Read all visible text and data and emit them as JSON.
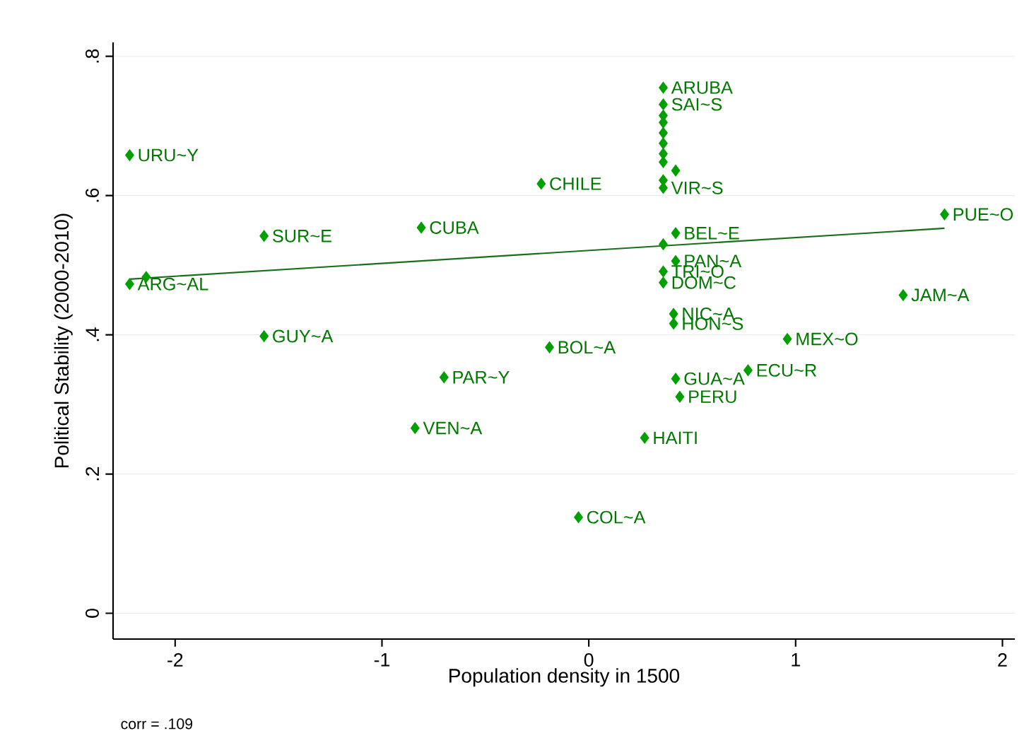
{
  "chart_data": {
    "type": "scatter",
    "xlabel": "Population density in 1500",
    "ylabel": "Political Stability (2000-2010)",
    "annotations": [
      "corr = .109"
    ],
    "xlim": [
      -2.3,
      2.06
    ],
    "ylim": [
      -0.037,
      0.82
    ],
    "xticks": [
      -2,
      -1,
      0,
      1,
      2
    ],
    "yticks": [
      {
        "value": 0,
        "label": "0"
      },
      {
        "value": 0.2,
        "label": ".2"
      },
      {
        "value": 0.4,
        "label": ".4"
      },
      {
        "value": 0.6,
        "label": ".6"
      },
      {
        "value": 0.8,
        "label": ".8"
      }
    ],
    "grid": "y",
    "marker": "diamond",
    "series": [
      {
        "color": "#00a000",
        "x": [
          -2.22,
          -2.22,
          -2.14,
          -1.57,
          -1.57,
          -0.81,
          -0.23,
          -0.7,
          -0.19,
          -0.84,
          -0.05,
          0.27,
          0.42,
          0.44,
          0.77,
          0.96,
          1.52,
          1.72,
          0.41,
          0.41,
          0.42,
          0.36,
          0.42,
          0.36,
          0.36,
          0.36,
          0.36,
          0.36,
          0.36,
          0.36,
          0.36,
          0.36,
          0.36,
          0.42,
          0.36,
          0.36
        ],
        "values": [
          0.658,
          0.473,
          0.483,
          0.542,
          0.398,
          0.554,
          0.617,
          0.339,
          0.382,
          0.266,
          0.138,
          0.252,
          0.337,
          0.311,
          0.349,
          0.394,
          0.457,
          0.573,
          0.43,
          0.416,
          0.546,
          0.53,
          0.506,
          0.491,
          0.475,
          0.755,
          0.731,
          0.715,
          0.705,
          0.69,
          0.675,
          0.66,
          0.648,
          0.636,
          0.622,
          0.611
        ],
        "value_labels": [
          "URU~Y",
          "ARG~AL",
          null,
          "SUR~E",
          "GUY~A",
          "CUBA",
          "CHILE",
          "PAR~Y",
          "BOL~A",
          "VEN~A",
          "COL~A",
          "HAITI",
          "GUA~A",
          "PERU",
          "ECU~R",
          "MEX~O",
          "JAM~A",
          "PUE~O",
          "NIC~A",
          "HON~S",
          "BEL~E",
          null,
          "PAN~A",
          "TRI~O",
          "DOM~C",
          "ARUBA",
          "SAI~S",
          null,
          null,
          null,
          null,
          null,
          null,
          null,
          null,
          "VIR~S"
        ]
      },
      {
        "type": "line",
        "color": "#1a6e1a",
        "marker": "none",
        "x": [
          -2.22,
          1.72
        ],
        "values": [
          0.48,
          0.553
        ]
      }
    ]
  }
}
